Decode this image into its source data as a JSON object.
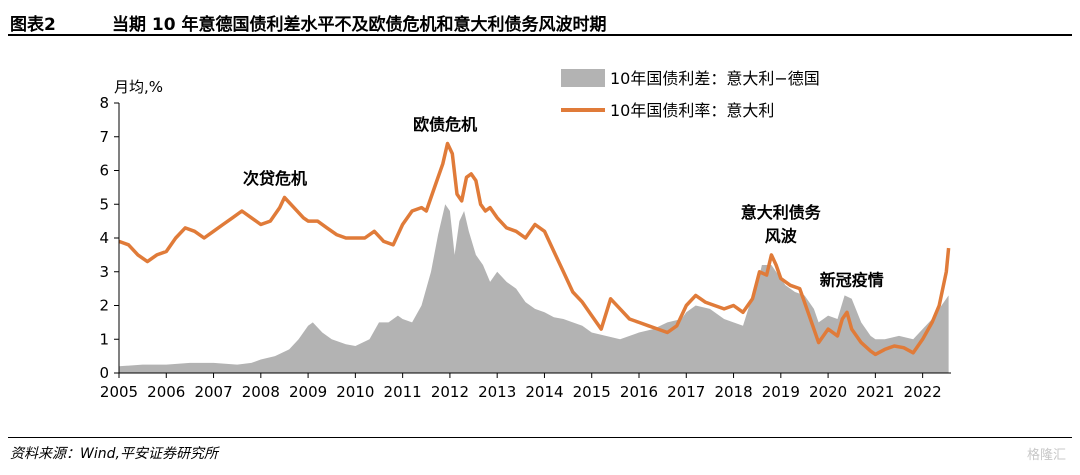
{
  "header": {
    "figure_no": "图表2",
    "title": "当期 10 年意德国债利差水平不及欧债危机和意大利债务风波时期"
  },
  "footer": {
    "source": "资料来源：Wind,平安证券研究所",
    "watermark": "格隆汇"
  },
  "chart_data": {
    "type": "area+line",
    "ylabel": "月均,%",
    "xlim": [
      2005,
      2022.6
    ],
    "ylim": [
      0,
      8
    ],
    "x_ticks": [
      "2005",
      "2006",
      "2007",
      "2008",
      "2009",
      "2010",
      "2011",
      "2012",
      "2013",
      "2014",
      "2015",
      "2016",
      "2017",
      "2018",
      "2019",
      "2020",
      "2021",
      "2022"
    ],
    "y_ticks": [
      "0",
      "1",
      "2",
      "3",
      "4",
      "5",
      "6",
      "7",
      "8"
    ],
    "legend": [
      "10年国债利差：意大利−德国",
      "10年国债利率：意大利"
    ],
    "colors": {
      "spread": "#b3b3b3",
      "yield": "#e07b39"
    },
    "annotations": [
      {
        "text": "次贷危机",
        "x": 2008.3,
        "y": 5.6
      },
      {
        "text": "欧债危机",
        "x": 2011.9,
        "y": 7.2
      },
      {
        "text": "意大利债务",
        "x": 2019.0,
        "y": 4.6
      },
      {
        "text": "风波",
        "x": 2019.0,
        "y": 3.9
      },
      {
        "text": "新冠疫情",
        "x": 2020.5,
        "y": 2.6
      }
    ],
    "series": [
      {
        "name": "10年国债利差：意大利−德国",
        "style": "area",
        "x": [
          2005.0,
          2005.5,
          2006.0,
          2006.5,
          2007.0,
          2007.5,
          2007.8,
          2008.0,
          2008.3,
          2008.6,
          2008.8,
          2009.0,
          2009.1,
          2009.3,
          2009.5,
          2009.8,
          2010.0,
          2010.3,
          2010.5,
          2010.7,
          2010.9,
          2011.0,
          2011.2,
          2011.4,
          2011.6,
          2011.75,
          2011.9,
          2012.0,
          2012.1,
          2012.2,
          2012.3,
          2012.4,
          2012.55,
          2012.7,
          2012.85,
          2013.0,
          2013.2,
          2013.4,
          2013.6,
          2013.8,
          2014.0,
          2014.2,
          2014.4,
          2014.6,
          2014.8,
          2015.0,
          2015.3,
          2015.6,
          2016.0,
          2016.3,
          2016.6,
          2016.9,
          2017.0,
          2017.2,
          2017.5,
          2017.8,
          2018.0,
          2018.2,
          2018.4,
          2018.5,
          2018.6,
          2018.8,
          2018.9,
          2019.0,
          2019.1,
          2019.3,
          2019.5,
          2019.7,
          2019.8,
          2019.9,
          2020.0,
          2020.2,
          2020.35,
          2020.5,
          2020.7,
          2020.9,
          2021.0,
          2021.2,
          2021.5,
          2021.8,
          2022.0,
          2022.2,
          2022.4,
          2022.55
        ],
        "values": [
          0.2,
          0.25,
          0.25,
          0.3,
          0.3,
          0.25,
          0.3,
          0.4,
          0.5,
          0.7,
          1.0,
          1.4,
          1.5,
          1.2,
          1.0,
          0.85,
          0.8,
          1.0,
          1.5,
          1.5,
          1.7,
          1.6,
          1.5,
          2.0,
          3.0,
          4.1,
          5.0,
          4.8,
          3.5,
          4.5,
          4.8,
          4.2,
          3.5,
          3.2,
          2.7,
          3.0,
          2.7,
          2.5,
          2.1,
          1.9,
          1.8,
          1.65,
          1.6,
          1.5,
          1.4,
          1.2,
          1.1,
          1.0,
          1.2,
          1.3,
          1.5,
          1.6,
          1.8,
          2.0,
          1.9,
          1.6,
          1.5,
          1.4,
          2.3,
          2.6,
          3.2,
          3.2,
          3.0,
          2.8,
          2.6,
          2.4,
          2.3,
          1.9,
          1.5,
          1.6,
          1.7,
          1.6,
          2.3,
          2.2,
          1.5,
          1.1,
          1.0,
          1.0,
          1.1,
          1.0,
          1.3,
          1.6,
          2.0,
          2.3
        ]
      },
      {
        "name": "10年国债利率：意大利",
        "style": "line",
        "x": [
          2005.0,
          2005.2,
          2005.4,
          2005.6,
          2005.8,
          2006.0,
          2006.2,
          2006.4,
          2006.6,
          2006.8,
          2007.0,
          2007.2,
          2007.4,
          2007.6,
          2007.8,
          2008.0,
          2008.2,
          2008.4,
          2008.5,
          2008.7,
          2008.9,
          2009.0,
          2009.2,
          2009.4,
          2009.6,
          2009.8,
          2010.0,
          2010.2,
          2010.4,
          2010.6,
          2010.8,
          2011.0,
          2011.2,
          2011.4,
          2011.5,
          2011.6,
          2011.7,
          2011.85,
          2011.95,
          2012.05,
          2012.15,
          2012.25,
          2012.35,
          2012.45,
          2012.55,
          2012.65,
          2012.75,
          2012.85,
          2013.0,
          2013.2,
          2013.4,
          2013.6,
          2013.8,
          2014.0,
          2014.2,
          2014.4,
          2014.6,
          2014.8,
          2015.0,
          2015.2,
          2015.4,
          2015.6,
          2015.8,
          2016.0,
          2016.2,
          2016.4,
          2016.6,
          2016.8,
          2017.0,
          2017.2,
          2017.4,
          2017.6,
          2017.8,
          2018.0,
          2018.2,
          2018.4,
          2018.55,
          2018.7,
          2018.8,
          2018.9,
          2019.0,
          2019.2,
          2019.4,
          2019.6,
          2019.8,
          2020.0,
          2020.2,
          2020.3,
          2020.4,
          2020.5,
          2020.7,
          2020.9,
          2021.0,
          2021.2,
          2021.4,
          2021.6,
          2021.8,
          2022.0,
          2022.2,
          2022.35,
          2022.5,
          2022.55
        ],
        "values": [
          3.9,
          3.8,
          3.5,
          3.3,
          3.5,
          3.6,
          4.0,
          4.3,
          4.2,
          4.0,
          4.2,
          4.4,
          4.6,
          4.8,
          4.6,
          4.4,
          4.5,
          4.9,
          5.2,
          4.9,
          4.6,
          4.5,
          4.5,
          4.3,
          4.1,
          4.0,
          4.0,
          4.0,
          4.2,
          3.9,
          3.8,
          4.4,
          4.8,
          4.9,
          4.8,
          5.2,
          5.6,
          6.2,
          6.8,
          6.5,
          5.3,
          5.1,
          5.8,
          5.9,
          5.7,
          5.0,
          4.8,
          4.9,
          4.6,
          4.3,
          4.2,
          4.0,
          4.4,
          4.2,
          3.6,
          3.0,
          2.4,
          2.1,
          1.7,
          1.3,
          2.2,
          1.9,
          1.6,
          1.5,
          1.4,
          1.3,
          1.2,
          1.4,
          2.0,
          2.3,
          2.1,
          2.0,
          1.9,
          2.0,
          1.8,
          2.2,
          3.0,
          2.9,
          3.5,
          3.2,
          2.8,
          2.6,
          2.5,
          1.7,
          0.9,
          1.3,
          1.1,
          1.6,
          1.8,
          1.3,
          0.9,
          0.65,
          0.55,
          0.7,
          0.8,
          0.75,
          0.6,
          1.0,
          1.5,
          2.0,
          3.0,
          3.7
        ]
      }
    ]
  }
}
